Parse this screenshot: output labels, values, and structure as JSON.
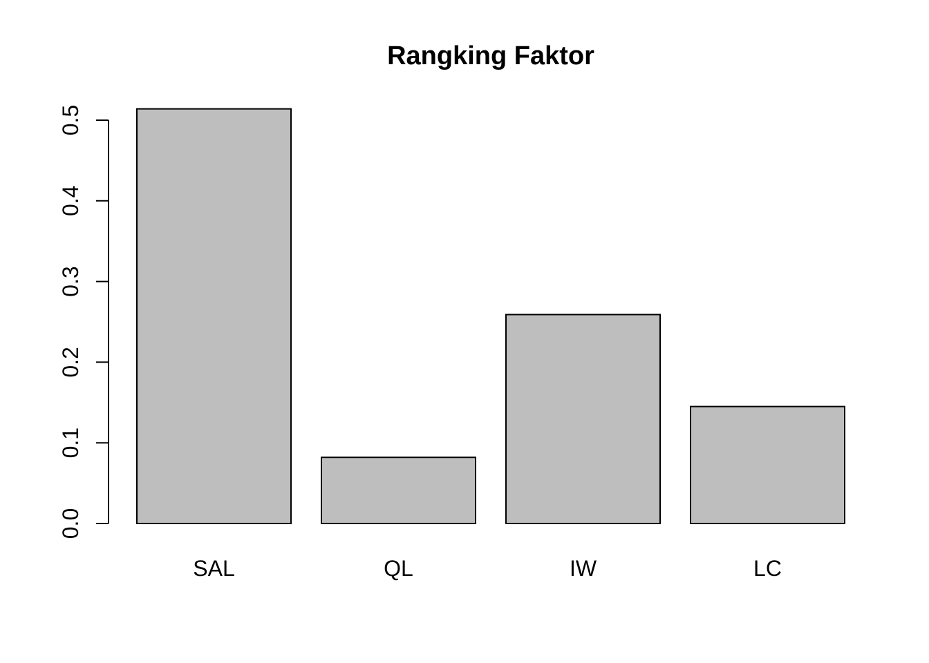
{
  "chart_data": {
    "type": "bar",
    "title": "Rangking Faktor",
    "xlabel": "",
    "ylabel": "",
    "categories": [
      "SAL",
      "QL",
      "IW",
      "LC"
    ],
    "values": [
      0.514,
      0.082,
      0.259,
      0.145
    ],
    "ylim": [
      0,
      0.5
    ],
    "yticks": [
      0.0,
      0.1,
      0.2,
      0.3,
      0.4,
      0.5
    ],
    "ytick_labels": [
      "0.0",
      "0.1",
      "0.2",
      "0.3",
      "0.4",
      "0.5"
    ],
    "grid": false,
    "legend": "none",
    "colors": {
      "bar_fill": "#bebebe",
      "bar_stroke": "#000000",
      "axis": "#000000",
      "background": "#ffffff"
    }
  }
}
